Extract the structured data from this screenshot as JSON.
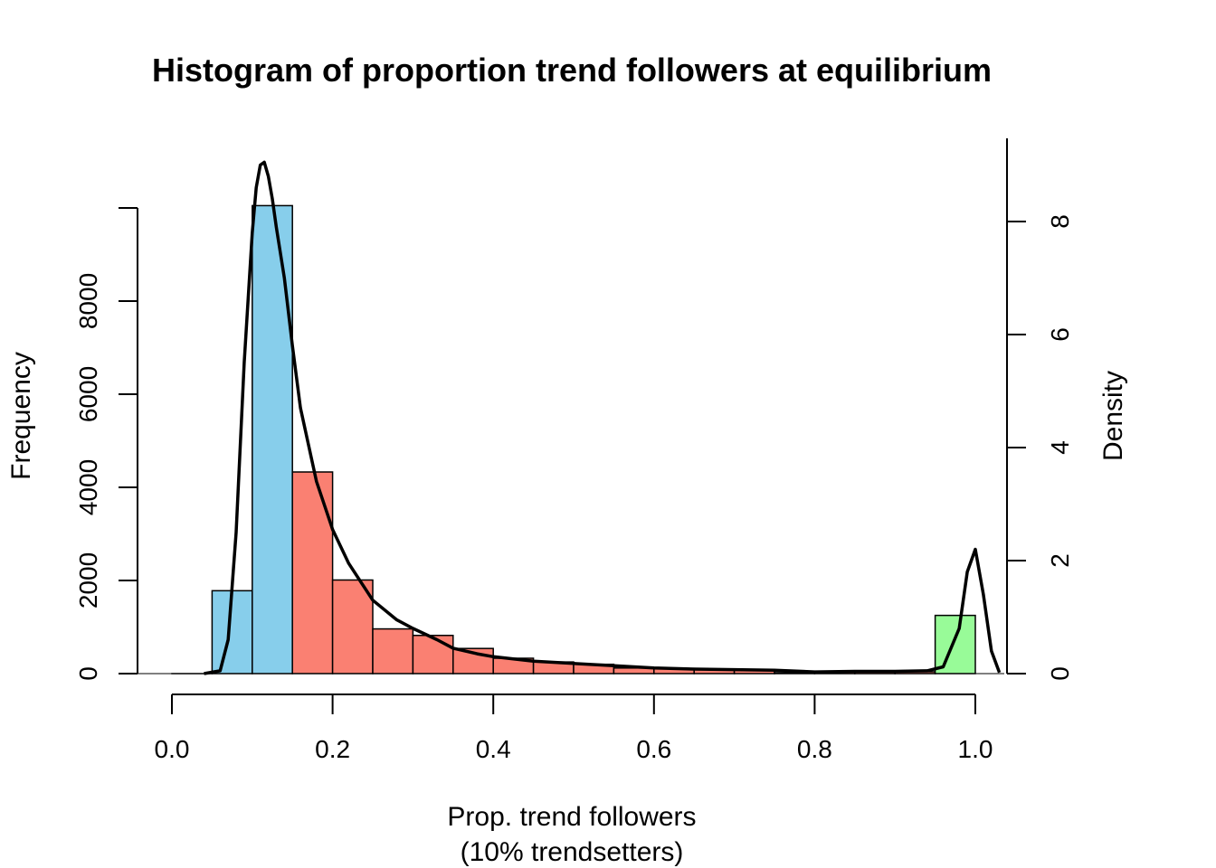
{
  "chart_data": {
    "type": "bar",
    "title": "Histogram of proportion trend followers at equilibrium",
    "xlabel": "Prop. trend followers",
    "xlabel2": "(10% trendsetters)",
    "ylabel": "Frequency",
    "y2label": "Density",
    "xlim": [
      0,
      1
    ],
    "ylim": [
      0,
      10000
    ],
    "y2lim": [
      0,
      9
    ],
    "x_ticks": [
      "0.0",
      "0.2",
      "0.4",
      "0.6",
      "0.8",
      "1.0"
    ],
    "y_ticks": [
      "0",
      "2000",
      "4000",
      "6000",
      "8000"
    ],
    "y2_ticks": [
      "0",
      "2",
      "4",
      "6",
      "8"
    ],
    "grid": false,
    "bins": [
      {
        "x0": 0.0,
        "x1": 0.05,
        "value": 0,
        "color": "#ffffff"
      },
      {
        "x0": 0.05,
        "x1": 0.1,
        "value": 1780,
        "color": "#87ceeb"
      },
      {
        "x0": 0.1,
        "x1": 0.15,
        "value": 10050,
        "color": "#87ceeb"
      },
      {
        "x0": 0.15,
        "x1": 0.2,
        "value": 4330,
        "color": "#fa8072"
      },
      {
        "x0": 0.2,
        "x1": 0.25,
        "value": 2010,
        "color": "#fa8072"
      },
      {
        "x0": 0.25,
        "x1": 0.3,
        "value": 960,
        "color": "#fa8072"
      },
      {
        "x0": 0.3,
        "x1": 0.35,
        "value": 820,
        "color": "#fa8072"
      },
      {
        "x0": 0.35,
        "x1": 0.4,
        "value": 540,
        "color": "#fa8072"
      },
      {
        "x0": 0.4,
        "x1": 0.45,
        "value": 330,
        "color": "#fa8072"
      },
      {
        "x0": 0.45,
        "x1": 0.5,
        "value": 250,
        "color": "#fa8072"
      },
      {
        "x0": 0.5,
        "x1": 0.55,
        "value": 200,
        "color": "#fa8072"
      },
      {
        "x0": 0.55,
        "x1": 0.6,
        "value": 120,
        "color": "#fa8072"
      },
      {
        "x0": 0.6,
        "x1": 0.65,
        "value": 110,
        "color": "#fa8072"
      },
      {
        "x0": 0.65,
        "x1": 0.7,
        "value": 90,
        "color": "#fa8072"
      },
      {
        "x0": 0.7,
        "x1": 0.75,
        "value": 80,
        "color": "#fa8072"
      },
      {
        "x0": 0.75,
        "x1": 0.8,
        "value": 20,
        "color": "#fa8072"
      },
      {
        "x0": 0.8,
        "x1": 0.85,
        "value": 40,
        "color": "#fa8072"
      },
      {
        "x0": 0.85,
        "x1": 0.9,
        "value": 40,
        "color": "#fa8072"
      },
      {
        "x0": 0.9,
        "x1": 0.95,
        "value": 40,
        "color": "#fa8072"
      },
      {
        "x0": 0.95,
        "x1": 1.0,
        "value": 1250,
        "color": "#98fb98"
      }
    ],
    "density": {
      "x": [
        0.04,
        0.06,
        0.07,
        0.08,
        0.09,
        0.1,
        0.105,
        0.11,
        0.115,
        0.12,
        0.125,
        0.13,
        0.14,
        0.15,
        0.16,
        0.18,
        0.2,
        0.22,
        0.25,
        0.28,
        0.3,
        0.33,
        0.35,
        0.38,
        0.4,
        0.45,
        0.5,
        0.55,
        0.6,
        0.65,
        0.7,
        0.75,
        0.8,
        0.85,
        0.9,
        0.94,
        0.96,
        0.98,
        0.99,
        1.0,
        1.01,
        1.02,
        1.03
      ],
      "y": [
        0,
        0.05,
        0.6,
        2.5,
        5.5,
        7.8,
        8.6,
        9.0,
        9.05,
        8.8,
        8.4,
        7.9,
        7.0,
        5.8,
        4.7,
        3.4,
        2.55,
        1.95,
        1.3,
        0.95,
        0.8,
        0.6,
        0.45,
        0.35,
        0.3,
        0.22,
        0.18,
        0.14,
        0.1,
        0.08,
        0.07,
        0.06,
        0.03,
        0.04,
        0.04,
        0.05,
        0.12,
        0.8,
        1.8,
        2.2,
        1.4,
        0.4,
        0.02
      ]
    }
  }
}
